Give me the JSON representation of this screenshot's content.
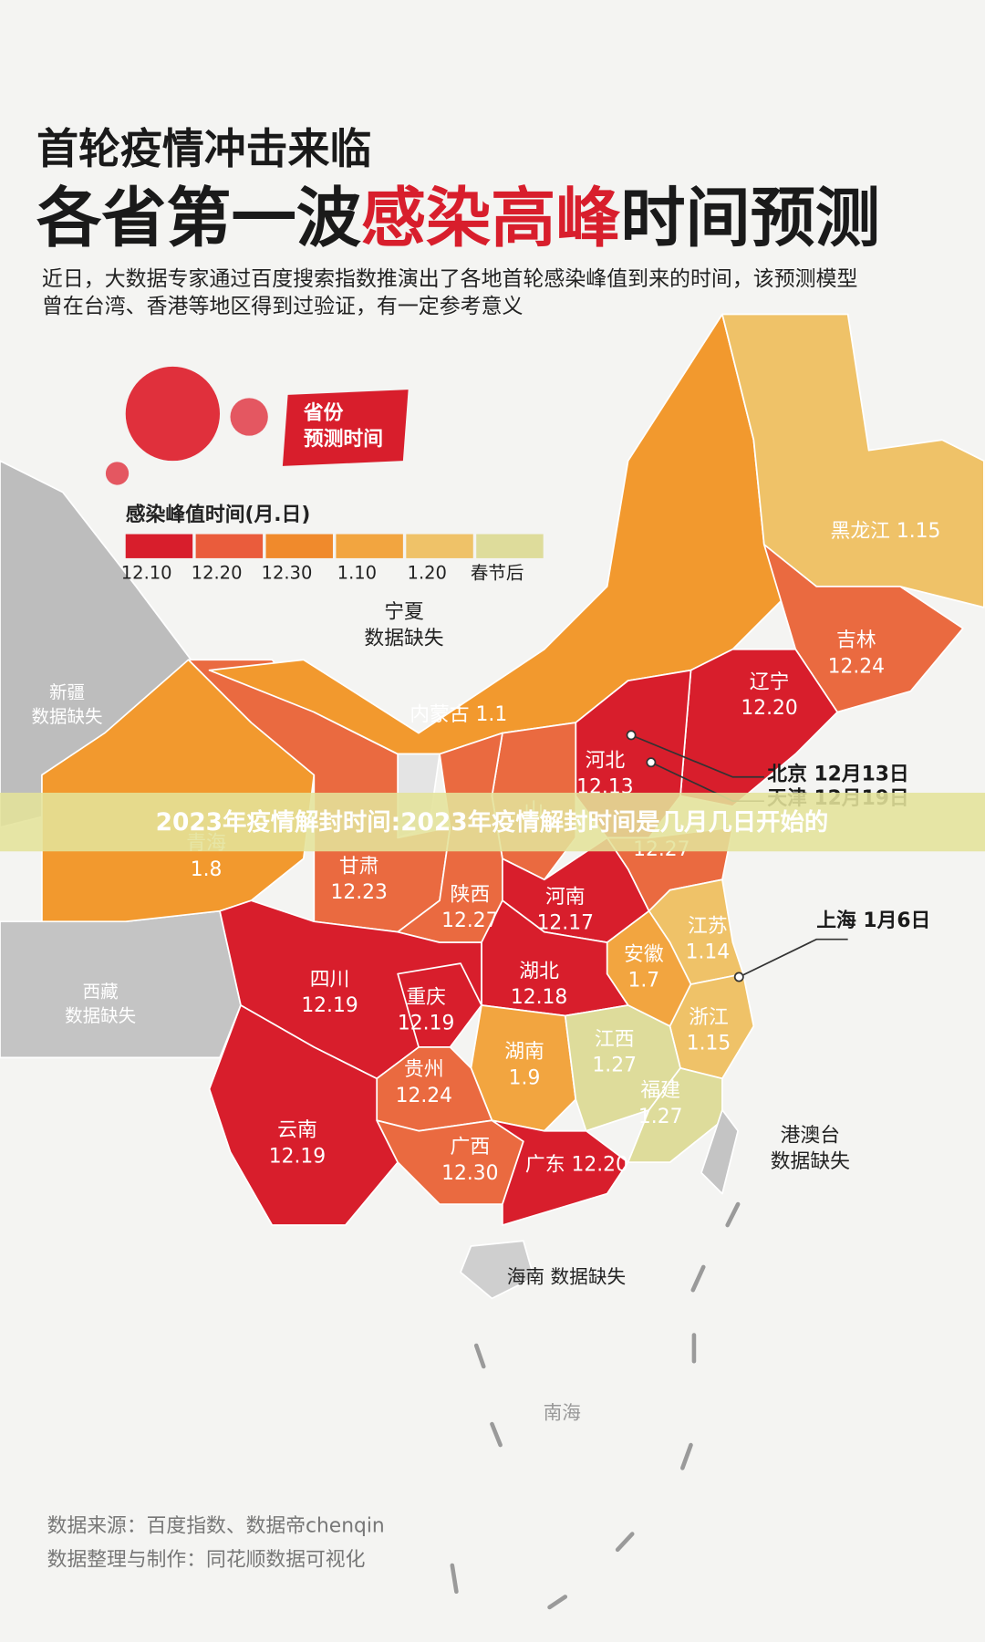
{
  "header": {
    "kicker": "首轮疫情冲击来临",
    "title_parts": [
      "各省第一波",
      "感染高峰",
      "时间预测"
    ],
    "intro": [
      "近日，大数据专家通过百度搜索指数推演出了各地首轮感染峰值到来的时间，该预测模型",
      "曾在台湾、香港等地区得到过验证，有一定参考意义"
    ]
  },
  "badge": [
    "省份",
    "预测时间"
  ],
  "legend": {
    "title": "感染峰值时间(月.日)",
    "items": [
      {
        "label": "12.10",
        "color": "#d81e2c"
      },
      {
        "label": "12.20",
        "color": "#ea5c3c"
      },
      {
        "label": "12.30",
        "color": "#f08a2c"
      },
      {
        "label": "1.10",
        "color": "#f2a540"
      },
      {
        "label": "1.20",
        "color": "#efc268"
      },
      {
        "label": "春节后",
        "color": "#dedc9b"
      }
    ]
  },
  "regions": [
    {
      "name": "新疆",
      "value": "数据缺失",
      "color": "#bdbdbd"
    },
    {
      "name": "西藏",
      "value": "数据缺失",
      "color": "#c4c4c4"
    },
    {
      "name": "青海",
      "value": "1.8",
      "color": "#f2992e"
    },
    {
      "name": "甘肃",
      "value": "12.23",
      "color": "#ea6a40"
    },
    {
      "name": "内蒙古",
      "value": "1.1",
      "color": "#f2992e"
    },
    {
      "name": "黑龙江",
      "value": "1.15",
      "color": "#efc268"
    },
    {
      "name": "吉林",
      "value": "12.24",
      "color": "#ea6a40"
    },
    {
      "name": "辽宁",
      "value": "12.20",
      "color": "#d81e2c"
    },
    {
      "name": "河北",
      "value": "12.13",
      "color": "#d81e2c"
    },
    {
      "name": "山",
      "color": "#ea6a40"
    },
    {
      "name": "宁夏",
      "value": "数据缺失",
      "color": "#e4e4e4"
    },
    {
      "name": "陕西",
      "value": "12.27",
      "color": "#ea6a40"
    },
    {
      "value": "12.27",
      "color": "#ea6a40"
    },
    {
      "name": "河南",
      "value": "12.17",
      "color": "#d81e2c"
    },
    {
      "name": "江苏",
      "value": "1.14",
      "color": "#efc268"
    },
    {
      "name": "安徽",
      "value": "1.7",
      "color": "#f2a540"
    },
    {
      "name": "湖北",
      "value": "12.18",
      "color": "#d81e2c"
    },
    {
      "name": "四川",
      "value": "12.19",
      "color": "#d81e2c"
    },
    {
      "name": "重庆",
      "value": "12.19",
      "color": "#d81e2c"
    },
    {
      "name": "浙江",
      "value": "1.15",
      "color": "#efc268"
    },
    {
      "name": "湖南",
      "value": "1.9",
      "color": "#f2a540"
    },
    {
      "name": "江西",
      "value": "1.27",
      "color": "#dedc9b"
    },
    {
      "name": "贵州",
      "value": "12.24",
      "color": "#ea6a40"
    },
    {
      "name": "福建",
      "value": "1.27",
      "color": "#dedc9b"
    },
    {
      "name": "云南",
      "value": "12.19",
      "color": "#d81e2c"
    },
    {
      "name": "广西",
      "value": "12.30",
      "color": "#ea6a40"
    },
    {
      "name": "广东",
      "value": "12.20",
      "color": "#d81e2c"
    },
    {
      "name": "港澳台",
      "value": "数据缺失",
      "color": "#c4c4c4"
    },
    {
      "name": "海南",
      "value": "数据缺失",
      "color": "#cfcfcf"
    },
    {
      "name": "南海"
    }
  ],
  "callouts": [
    {
      "name": "北京",
      "value": "12月13日"
    },
    {
      "name": "天津",
      "value": "12月19日"
    },
    {
      "name": "上海",
      "value": "1月6日"
    }
  ],
  "banner": "2023年疫情解封时间:2023年疫情解封时间是几月几日开始的",
  "sources": [
    "数据来源：百度指数、数据帝chenqin",
    "数据整理与制作：同花顺数据可视化"
  ]
}
